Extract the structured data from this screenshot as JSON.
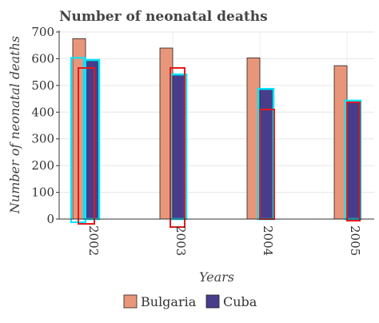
{
  "chart_data": {
    "type": "bar",
    "title": "Number of neonatal deaths",
    "xlabel": "Years",
    "ylabel": "Number of neonatal deaths",
    "categories": [
      "2002",
      "2003",
      "2004",
      "2005"
    ],
    "series": [
      {
        "name": "Bulgaria",
        "values": [
          675,
          640,
          603,
          574
        ],
        "color": "#E8967A"
      },
      {
        "name": "Cuba",
        "values": [
          592,
          538,
          484,
          440
        ],
        "color": "#483D8B"
      }
    ],
    "ylim": [
      0,
      700
    ],
    "yticks": [
      0,
      100,
      200,
      300,
      400,
      500,
      600,
      700
    ],
    "grid": true,
    "legend_position": "bottom",
    "annotation_colors": {
      "cyan": "#00E5FF",
      "red": "#E31A1C"
    }
  }
}
